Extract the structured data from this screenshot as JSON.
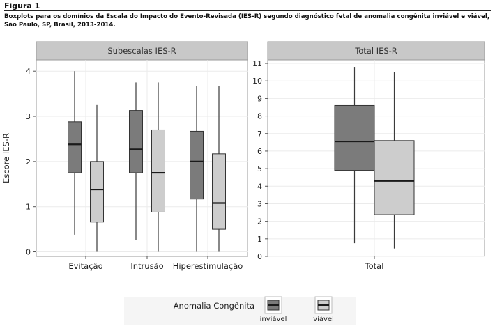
{
  "figure_label": "Figura 1",
  "caption": "Boxplots para os domínios da Escala do Impacto do Evento-Revisada (IES-R) segundo diagnóstico fetal de anomalia congênita inviável e viável, São Paulo, SP, Brasil, 2013-2014.",
  "colors": {
    "inviavel": "#7b7b7b",
    "viavel": "#cdcdcd",
    "panel_header": "#c8c8c8",
    "panel_bg": "#ffffff",
    "grid": "#ebebeb",
    "median": "#1a1a1a"
  },
  "legend": {
    "title": "Anomalia Congênita",
    "position": "bottom",
    "items": [
      {
        "label": "inviável",
        "color_key": "inviavel"
      },
      {
        "label": "viável",
        "color_key": "viavel"
      }
    ]
  },
  "chart_data": [
    {
      "type": "boxplot",
      "panel_title": "Subescalas IES-R",
      "ylabel": "Escore IES-R",
      "xlabel": "",
      "ylim": [
        -0.1,
        4.25
      ],
      "yticks": [
        0,
        1,
        2,
        3,
        4
      ],
      "grid": true,
      "categories": [
        "Evitação",
        "Intrusão",
        "Hiperestimulação"
      ],
      "series": [
        {
          "name": "inviável",
          "boxes": [
            {
              "min": 0.38,
              "q1": 1.75,
              "median": 2.38,
              "q3": 2.88,
              "max": 4.0
            },
            {
              "min": 0.27,
              "q1": 1.75,
              "median": 2.27,
              "q3": 3.13,
              "max": 3.75
            },
            {
              "min": 0.0,
              "q1": 1.17,
              "median": 2.0,
              "q3": 2.67,
              "max": 3.67
            }
          ]
        },
        {
          "name": "viável",
          "boxes": [
            {
              "min": 0.0,
              "q1": 0.66,
              "median": 1.38,
              "q3": 2.0,
              "max": 3.25
            },
            {
              "min": 0.0,
              "q1": 0.88,
              "median": 1.75,
              "q3": 2.7,
              "max": 3.75
            },
            {
              "min": 0.0,
              "q1": 0.5,
              "median": 1.08,
              "q3": 2.17,
              "max": 3.67
            }
          ]
        }
      ]
    },
    {
      "type": "boxplot",
      "panel_title": "Total IES-R",
      "ylabel": "",
      "xlabel": "",
      "ylim": [
        0,
        11.2
      ],
      "yticks": [
        0,
        1,
        2,
        3,
        4,
        5,
        6,
        7,
        8,
        9,
        10,
        11
      ],
      "grid": true,
      "categories": [
        "Total"
      ],
      "series": [
        {
          "name": "inviável",
          "boxes": [
            {
              "min": 0.75,
              "q1": 4.9,
              "median": 6.55,
              "q3": 8.6,
              "max": 10.8
            }
          ]
        },
        {
          "name": "viável",
          "boxes": [
            {
              "min": 0.45,
              "q1": 2.38,
              "median": 4.3,
              "q3": 6.6,
              "max": 10.5
            }
          ]
        }
      ]
    }
  ]
}
